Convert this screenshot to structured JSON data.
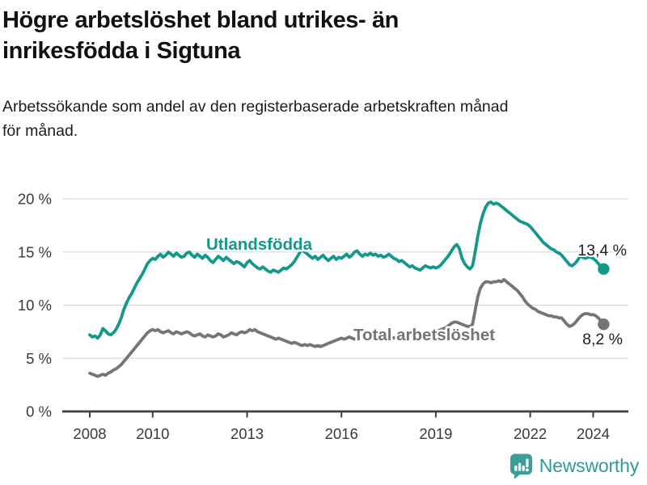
{
  "header": {
    "title_lines": [
      "Högre arbetslöshet bland utrikes- än",
      "inrikesfödda i Sigtuna"
    ],
    "subtitle_lines": [
      "Arbetssökande som andel av den registerbaserade arbetskraften månad",
      "för månad."
    ]
  },
  "footer": {
    "brand_name": "Newsworthy",
    "brand_color": "#2E9D95",
    "logo_icon": "bar-chart-speech-bubble-icon"
  },
  "chart_data": {
    "type": "line",
    "unit": "percent",
    "grid": true,
    "x_axis": {
      "start": {
        "year": 2008,
        "month": 1
      },
      "end": {
        "year": 2024,
        "month": 5
      },
      "ticks": [
        {
          "value": 2008,
          "label": "2008"
        },
        {
          "value": 2010,
          "label": "2010"
        },
        {
          "value": 2013,
          "label": "2013"
        },
        {
          "value": 2016,
          "label": "2016"
        },
        {
          "value": 2019,
          "label": "2019"
        },
        {
          "value": 2022,
          "label": "2022"
        },
        {
          "value": 2024,
          "label": "2024"
        }
      ]
    },
    "y_axis": {
      "range": [
        0,
        21
      ],
      "ticks": [
        {
          "value": 0,
          "label": "0 %"
        },
        {
          "value": 5,
          "label": "5 %"
        },
        {
          "value": 10,
          "label": "10 %"
        },
        {
          "value": 15,
          "label": "15 %"
        },
        {
          "value": 20,
          "label": "20 %"
        }
      ]
    },
    "series": [
      {
        "name": "Utlandsfödda",
        "color": "#13998C",
        "end_value_label": "13,4 %",
        "last_value": 13.4,
        "values": [
          7.2,
          7.0,
          7.1,
          6.9,
          7.2,
          7.8,
          7.6,
          7.3,
          7.2,
          7.4,
          7.7,
          8.2,
          8.8,
          9.6,
          10.2,
          10.7,
          11.1,
          11.6,
          12.1,
          12.5,
          12.9,
          13.4,
          13.9,
          14.2,
          14.4,
          14.3,
          14.6,
          14.8,
          14.5,
          14.7,
          15.0,
          14.8,
          14.6,
          14.9,
          14.7,
          14.5,
          14.6,
          14.9,
          15.0,
          14.7,
          14.5,
          14.8,
          14.6,
          14.4,
          14.7,
          14.5,
          14.2,
          14.0,
          14.3,
          14.6,
          14.4,
          14.2,
          14.5,
          14.3,
          14.1,
          13.9,
          14.1,
          14.0,
          13.8,
          13.6,
          14.0,
          14.2,
          13.9,
          13.7,
          13.5,
          13.4,
          13.6,
          13.4,
          13.2,
          13.1,
          13.3,
          13.2,
          13.1,
          13.3,
          13.5,
          13.4,
          13.6,
          13.8,
          14.1,
          14.5,
          14.9,
          15.2,
          15.0,
          14.8,
          14.6,
          14.4,
          14.6,
          14.3,
          14.5,
          14.7,
          14.4,
          14.2,
          14.4,
          14.6,
          14.3,
          14.5,
          14.4,
          14.6,
          14.8,
          14.5,
          14.7,
          15.0,
          15.1,
          14.8,
          14.6,
          14.8,
          14.7,
          14.9,
          14.7,
          14.8,
          14.6,
          14.7,
          14.5,
          14.6,
          14.8,
          14.6,
          14.4,
          14.3,
          14.1,
          14.2,
          14.0,
          13.8,
          13.6,
          13.7,
          13.5,
          13.4,
          13.3,
          13.5,
          13.7,
          13.6,
          13.5,
          13.6,
          13.5,
          13.6,
          13.8,
          14.1,
          14.4,
          14.7,
          15.1,
          15.5,
          15.7,
          15.3,
          14.4,
          13.9,
          13.6,
          13.4,
          13.7,
          15.0,
          16.5,
          17.7,
          18.6,
          19.2,
          19.6,
          19.7,
          19.5,
          19.6,
          19.5,
          19.3,
          19.1,
          18.9,
          18.7,
          18.5,
          18.3,
          18.1,
          17.9,
          17.8,
          17.7,
          17.6,
          17.4,
          17.1,
          16.8,
          16.5,
          16.2,
          15.9,
          15.7,
          15.5,
          15.3,
          15.2,
          15.0,
          14.9,
          14.7,
          14.4,
          14.1,
          13.8,
          13.7,
          13.9,
          14.2,
          14.6,
          14.5,
          14.4,
          14.5,
          14.5,
          14.4,
          14.2,
          13.9,
          13.6,
          13.4
        ]
      },
      {
        "name": "Total arbetslöshet",
        "color": "#757575",
        "end_value_label": "8,2 %",
        "last_value": 8.2,
        "values": [
          3.6,
          3.5,
          3.4,
          3.3,
          3.4,
          3.5,
          3.4,
          3.6,
          3.7,
          3.9,
          4.0,
          4.2,
          4.4,
          4.7,
          5.0,
          5.3,
          5.6,
          5.9,
          6.2,
          6.5,
          6.8,
          7.1,
          7.4,
          7.6,
          7.7,
          7.6,
          7.7,
          7.5,
          7.4,
          7.5,
          7.6,
          7.4,
          7.3,
          7.5,
          7.4,
          7.3,
          7.4,
          7.5,
          7.4,
          7.2,
          7.1,
          7.2,
          7.3,
          7.1,
          7.0,
          7.2,
          7.1,
          7.0,
          7.1,
          7.3,
          7.2,
          7.0,
          7.1,
          7.2,
          7.4,
          7.3,
          7.2,
          7.4,
          7.5,
          7.4,
          7.5,
          7.7,
          7.6,
          7.7,
          7.5,
          7.4,
          7.3,
          7.2,
          7.1,
          7.0,
          6.9,
          6.8,
          6.9,
          6.8,
          6.7,
          6.6,
          6.5,
          6.4,
          6.5,
          6.4,
          6.3,
          6.2,
          6.3,
          6.2,
          6.3,
          6.2,
          6.1,
          6.2,
          6.1,
          6.2,
          6.3,
          6.4,
          6.5,
          6.6,
          6.7,
          6.8,
          6.9,
          6.8,
          6.9,
          7.0,
          6.9,
          6.8,
          6.9,
          7.0,
          6.9,
          6.8,
          6.9,
          7.0,
          6.9,
          7.0,
          6.9,
          6.8,
          6.9,
          7.0,
          7.1,
          7.0,
          6.9,
          7.0,
          7.1,
          7.0,
          7.1,
          7.0,
          7.1,
          7.2,
          7.1,
          7.2,
          7.3,
          7.2,
          7.3,
          7.4,
          7.3,
          7.4,
          7.5,
          7.6,
          7.7,
          7.8,
          7.9,
          8.1,
          8.3,
          8.4,
          8.4,
          8.3,
          8.2,
          8.1,
          8.0,
          8.0,
          8.2,
          9.5,
          10.8,
          11.6,
          12.0,
          12.2,
          12.2,
          12.1,
          12.2,
          12.2,
          12.3,
          12.2,
          12.4,
          12.2,
          12.0,
          11.8,
          11.6,
          11.4,
          11.1,
          10.8,
          10.4,
          10.1,
          9.9,
          9.7,
          9.6,
          9.4,
          9.3,
          9.2,
          9.1,
          9.0,
          9.0,
          8.9,
          8.9,
          8.8,
          8.8,
          8.5,
          8.2,
          8.0,
          8.1,
          8.3,
          8.6,
          8.9,
          9.1,
          9.2,
          9.2,
          9.1,
          9.1,
          9.0,
          8.8,
          8.5,
          8.2
        ]
      }
    ]
  }
}
